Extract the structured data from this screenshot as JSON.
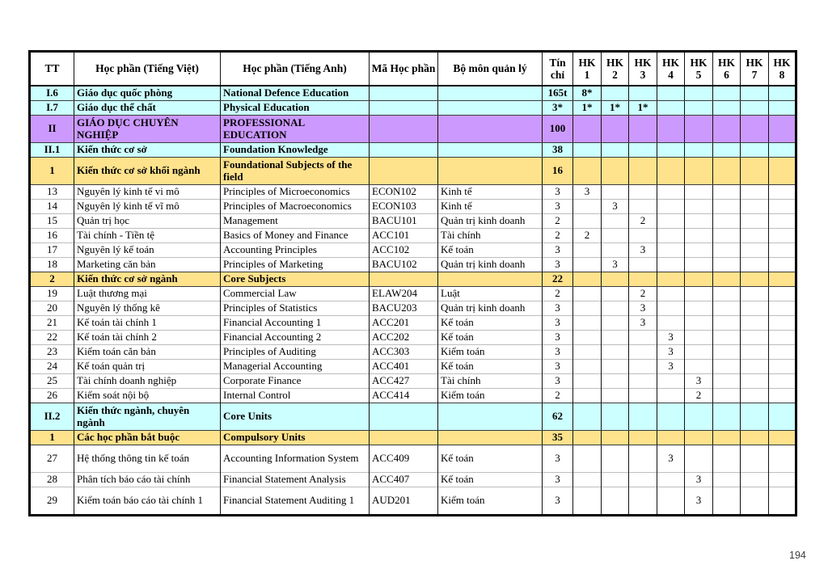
{
  "page_number": "194",
  "colors": {
    "section_cyan": "#CCFFFF",
    "section_purple": "#CC99FF",
    "section_gold": "#FFE28C"
  },
  "table": {
    "column_headers": {
      "tt": "TT",
      "vi": "Học phần (Tiếng Việt)",
      "en": "Học phần (Tiếng Anh)",
      "code": "Mã Học phần",
      "dept": "Bộ môn quản lý",
      "credits": "Tín chỉ"
    },
    "hk_headers": [
      "HK 1",
      "HK 2",
      "HK 3",
      "HK 4",
      "HK 5",
      "HK 6",
      "HK 7",
      "HK 8"
    ],
    "rows": [
      {
        "type": "cyan",
        "tt": "I.6",
        "vi": "Giáo dục quốc phòng",
        "en": "National Defence Education",
        "code": "",
        "dept": "",
        "credits": "165t",
        "hk": [
          "8*",
          "",
          "",
          "",
          "",
          "",
          "",
          ""
        ]
      },
      {
        "type": "cyan",
        "tt": "I.7",
        "vi": "Giáo dục thể chất",
        "en": "Physical Education",
        "code": "",
        "dept": "",
        "credits": "3*",
        "hk": [
          "1*",
          "1*",
          "1*",
          "",
          "",
          "",
          "",
          ""
        ]
      },
      {
        "type": "purple",
        "tt": "II",
        "vi": "GIÁO DỤC CHUYÊN NGHIỆP",
        "en": "PROFESSIONAL EDUCATION",
        "code": "",
        "dept": "",
        "credits": "100",
        "hk": [
          "",
          "",
          "",
          "",
          "",
          "",
          "",
          ""
        ],
        "tall": true
      },
      {
        "type": "cyan",
        "tt": "II.1",
        "vi": "Kiến thức cơ sở",
        "en": "Foundation Knowledge",
        "code": "",
        "dept": "",
        "credits": "38",
        "hk": [
          "",
          "",
          "",
          "",
          "",
          "",
          "",
          ""
        ]
      },
      {
        "type": "gold",
        "tt": "1",
        "vi": "Kiến thức cơ sở khối ngành",
        "en": "Foundational Subjects of the field",
        "code": "",
        "dept": "",
        "credits": "16",
        "hk": [
          "",
          "",
          "",
          "",
          "",
          "",
          "",
          ""
        ],
        "tall": true
      },
      {
        "type": "plain",
        "tt": "13",
        "vi": "Nguyên lý kinh tế vi mô",
        "en": "Principles of Microeconomics",
        "code": "ECON102",
        "dept": "Kinh tế",
        "credits": "3",
        "hk": [
          "3",
          "",
          "",
          "",
          "",
          "",
          "",
          ""
        ]
      },
      {
        "type": "plain",
        "tt": "14",
        "vi": "Nguyên lý kinh tế vĩ mô",
        "en": "Principles of Macroeconomics",
        "code": "ECON103",
        "dept": "Kinh tế",
        "credits": "3",
        "hk": [
          "",
          "3",
          "",
          "",
          "",
          "",
          "",
          ""
        ]
      },
      {
        "type": "plain",
        "tt": "15",
        "vi": "Quản trị học",
        "en": "Management",
        "code": "BACU101",
        "dept": "Quản trị kinh doanh",
        "credits": "2",
        "hk": [
          "",
          "",
          "2",
          "",
          "",
          "",
          "",
          ""
        ]
      },
      {
        "type": "plain",
        "tt": "16",
        "vi": "Tài chính - Tiền tệ",
        "en": "Basics of Money and Finance",
        "code": "ACC101",
        "dept": "Tài chính",
        "credits": "2",
        "hk": [
          "2",
          "",
          "",
          "",
          "",
          "",
          "",
          ""
        ]
      },
      {
        "type": "plain",
        "tt": "17",
        "vi": "Nguyên lý kế toán",
        "en": "Accounting Principles",
        "code": "ACC102",
        "dept": "Kế toán",
        "credits": "3",
        "hk": [
          "",
          "",
          "3",
          "",
          "",
          "",
          "",
          ""
        ]
      },
      {
        "type": "plain",
        "tt": "18",
        "vi": "Marketing căn bản",
        "en": "Principles of Marketing",
        "code": "BACU102",
        "dept": "Quản trị kinh doanh",
        "credits": "3",
        "hk": [
          "",
          "3",
          "",
          "",
          "",
          "",
          "",
          ""
        ]
      },
      {
        "type": "gold",
        "tt": "2",
        "vi": "Kiến thức cơ sở ngành",
        "en": "Core Subjects",
        "code": "",
        "dept": "",
        "credits": "22",
        "hk": [
          "",
          "",
          "",
          "",
          "",
          "",
          "",
          ""
        ]
      },
      {
        "type": "plain",
        "tt": "19",
        "vi": "Luật thương mại",
        "en": "Commercial Law",
        "code": "ELAW204",
        "dept": "Luật",
        "credits": "2",
        "hk": [
          "",
          "",
          "2",
          "",
          "",
          "",
          "",
          ""
        ]
      },
      {
        "type": "plain",
        "tt": "20",
        "vi": "Nguyên lý thống kê",
        "en": "Principles of Statistics",
        "code": "BACU203",
        "dept": "Quản trị kinh doanh",
        "credits": "3",
        "hk": [
          "",
          "",
          "3",
          "",
          "",
          "",
          "",
          ""
        ]
      },
      {
        "type": "plain",
        "tt": "21",
        "vi": "Kế toán tài chính 1",
        "en": "Financial Accounting 1",
        "code": "ACC201",
        "dept": "Kế toán",
        "credits": "3",
        "hk": [
          "",
          "",
          "3",
          "",
          "",
          "",
          "",
          ""
        ]
      },
      {
        "type": "plain",
        "tt": "22",
        "vi": "Kế toán tài chính 2",
        "en": "Financial Accounting 2",
        "code": "ACC202",
        "dept": "Kế toán",
        "credits": "3",
        "hk": [
          "",
          "",
          "",
          "3",
          "",
          "",
          "",
          ""
        ]
      },
      {
        "type": "plain",
        "tt": "23",
        "vi": "Kiểm toán căn bản",
        "en": "Principles of Auditing",
        "code": "ACC303",
        "dept": "Kiểm toán",
        "credits": "3",
        "hk": [
          "",
          "",
          "",
          "3",
          "",
          "",
          "",
          ""
        ]
      },
      {
        "type": "plain",
        "tt": "24",
        "vi": "Kế toán quản trị",
        "en": "Managerial Accounting",
        "code": "ACC401",
        "dept": "Kế toán",
        "credits": "3",
        "hk": [
          "",
          "",
          "",
          "3",
          "",
          "",
          "",
          ""
        ]
      },
      {
        "type": "plain",
        "tt": "25",
        "vi": "Tài chính doanh nghiệp",
        "en": "Corporate Finance",
        "code": "ACC427",
        "dept": "Tài chính",
        "credits": "3",
        "hk": [
          "",
          "",
          "",
          "",
          "3",
          "",
          "",
          ""
        ]
      },
      {
        "type": "plain",
        "tt": "26",
        "vi": "Kiểm soát nội bộ",
        "en": "Internal Control",
        "code": "ACC414",
        "dept": "Kiểm toán",
        "credits": "2",
        "hk": [
          "",
          "",
          "",
          "",
          "2",
          "",
          "",
          ""
        ]
      },
      {
        "type": "cyan",
        "tt": "II.2",
        "vi": "Kiến thức ngành, chuyên ngành",
        "en": "Core Units",
        "code": "",
        "dept": "",
        "credits": "62",
        "hk": [
          "",
          "",
          "",
          "",
          "",
          "",
          "",
          ""
        ],
        "tall": true
      },
      {
        "type": "gold",
        "tt": "1",
        "vi": "Các học phần bắt buộc",
        "en": "Compulsory Units",
        "code": "",
        "dept": "",
        "credits": "35",
        "hk": [
          "",
          "",
          "",
          "",
          "",
          "",
          "",
          ""
        ]
      },
      {
        "type": "plain",
        "tt": "27",
        "vi": "Hệ thống thông tin kế toán",
        "en": "Accounting Information System",
        "code": "ACC409",
        "dept": "Kế toán",
        "credits": "3",
        "hk": [
          "",
          "",
          "",
          "3",
          "",
          "",
          "",
          ""
        ],
        "tall": true
      },
      {
        "type": "plain",
        "tt": "28",
        "vi": "Phân tích báo cáo tài chính",
        "en": "Financial Statement Analysis",
        "code": "ACC407",
        "dept": "Kế toán",
        "credits": "3",
        "hk": [
          "",
          "",
          "",
          "",
          "3",
          "",
          "",
          ""
        ]
      },
      {
        "type": "plain",
        "tt": "29",
        "vi": "Kiểm toán báo cáo tài chính 1",
        "en": "Financial Statement Auditing 1",
        "code": "AUD201",
        "dept": "Kiểm toán",
        "credits": "3",
        "hk": [
          "",
          "",
          "",
          "",
          "3",
          "",
          "",
          ""
        ],
        "tall": true
      }
    ]
  }
}
